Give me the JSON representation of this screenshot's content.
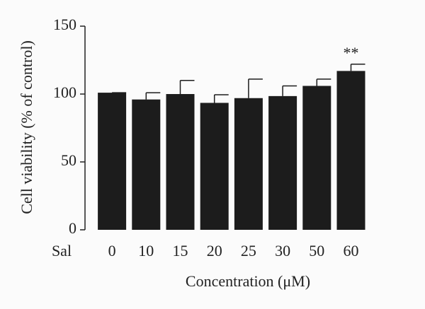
{
  "chart_data": {
    "type": "bar",
    "y_label": "Cell viability (% of control)",
    "x_label": "Concentration (μM)",
    "row_label": "Sal",
    "categories": [
      "0",
      "10",
      "15",
      "20",
      "25",
      "30",
      "50",
      "60"
    ],
    "values": [
      101,
      96,
      100,
      93.5,
      97,
      98.5,
      106,
      117
    ],
    "errors": [
      0,
      5,
      10,
      6,
      14,
      7.5,
      5,
      5
    ],
    "annotations": [
      {
        "category": 7,
        "text": "**"
      }
    ],
    "color": "#1c1c1c",
    "ylim": [
      0,
      150
    ],
    "yticks": [
      0,
      50,
      100,
      150
    ]
  }
}
